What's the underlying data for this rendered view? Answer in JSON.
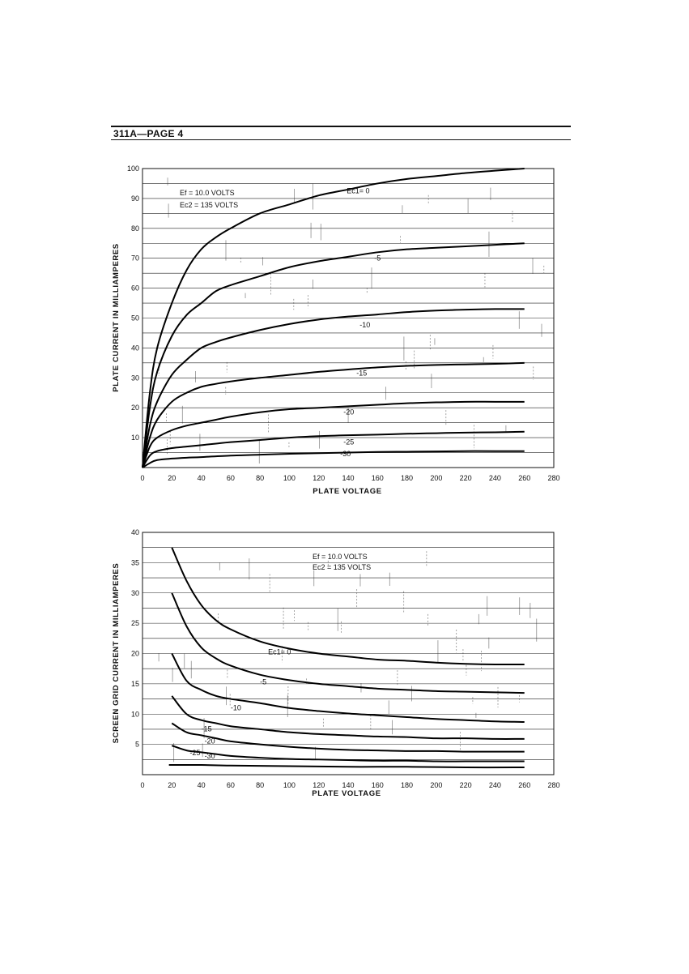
{
  "page": {
    "heading": "311A—PAGE 4"
  },
  "chart_data": [
    {
      "type": "line",
      "title": "",
      "xlabel": "PLATE VOLTAGE",
      "ylabel": "PLATE CURRENT IN MILLIAMPERES",
      "xlim": [
        0,
        280
      ],
      "ylim": [
        0,
        100
      ],
      "x_ticks": [
        "0",
        "20",
        "40",
        "60",
        "80",
        "100",
        "120",
        "140",
        "160",
        "180",
        "200",
        "220",
        "240",
        "260",
        "280"
      ],
      "y_ticks": [
        "10",
        "20",
        "30",
        "40",
        "50",
        "60",
        "70",
        "80",
        "90",
        "100"
      ],
      "conditions": [
        "Ef = 10.0 VOLTS",
        "Ec2 = 135 VOLTS"
      ],
      "series": [
        {
          "name": "Ec1 = 0",
          "label": "Ec1= 0",
          "x": [
            0,
            5,
            10,
            20,
            30,
            40,
            50,
            60,
            80,
            100,
            120,
            140,
            160,
            180,
            200,
            220,
            240,
            260
          ],
          "y": [
            0,
            25,
            40,
            55,
            66,
            73,
            77,
            80,
            85,
            88,
            91,
            93,
            95,
            96.5,
            97.5,
            98.5,
            99.3,
            100
          ]
        },
        {
          "name": "Ec1 = -5",
          "label": "-5",
          "x": [
            0,
            5,
            10,
            20,
            30,
            40,
            50,
            60,
            80,
            100,
            120,
            140,
            160,
            180,
            200,
            220,
            240,
            260
          ],
          "y": [
            0,
            20,
            32,
            44,
            51,
            55,
            59,
            61,
            64,
            67,
            69,
            70.5,
            72,
            73,
            73.5,
            74,
            74.5,
            75
          ]
        },
        {
          "name": "Ec1 = -10",
          "label": "-10",
          "x": [
            0,
            5,
            10,
            20,
            30,
            40,
            50,
            60,
            80,
            100,
            120,
            140,
            160,
            180,
            200,
            220,
            240,
            260
          ],
          "y": [
            0,
            14,
            22,
            31,
            36,
            40,
            42,
            43.5,
            46,
            48,
            49.5,
            50.5,
            51.2,
            52,
            52.5,
            52.8,
            53,
            53
          ]
        },
        {
          "name": "Ec1 = -15",
          "label": "-15",
          "x": [
            0,
            5,
            10,
            20,
            30,
            40,
            50,
            60,
            80,
            100,
            120,
            140,
            160,
            180,
            200,
            220,
            240,
            260
          ],
          "y": [
            0,
            10,
            16,
            22,
            25,
            27,
            28,
            28.8,
            30,
            31,
            32,
            32.8,
            33.5,
            34,
            34.3,
            34.5,
            34.7,
            35
          ]
        },
        {
          "name": "Ec1 = -20",
          "label": "-20",
          "x": [
            0,
            5,
            10,
            20,
            30,
            40,
            50,
            60,
            80,
            100,
            120,
            140,
            160,
            180,
            200,
            220,
            240,
            260
          ],
          "y": [
            0,
            7,
            10,
            12.5,
            14,
            15,
            16,
            17,
            18.5,
            19.5,
            20,
            20.5,
            21,
            21.5,
            21.8,
            22,
            22,
            22
          ]
        },
        {
          "name": "Ec1 = -25",
          "label": "-25",
          "x": [
            0,
            5,
            10,
            20,
            30,
            40,
            50,
            60,
            80,
            100,
            120,
            140,
            160,
            180,
            200,
            220,
            240,
            260
          ],
          "y": [
            0,
            4,
            5.5,
            6.5,
            7,
            7.5,
            8,
            8.5,
            9.2,
            10,
            10.5,
            10.8,
            11,
            11.3,
            11.5,
            11.7,
            11.8,
            12
          ]
        },
        {
          "name": "Ec1 = -30",
          "label": "-30",
          "x": [
            0,
            5,
            10,
            20,
            30,
            40,
            60,
            80,
            100,
            120,
            140,
            160,
            180,
            200,
            220,
            240,
            260
          ],
          "y": [
            0,
            1.5,
            2.5,
            3,
            3.3,
            3.5,
            4,
            4.3,
            4.6,
            4.8,
            5,
            5.2,
            5.3,
            5.4,
            5.5,
            5.5,
            5.5
          ]
        }
      ]
    },
    {
      "type": "line",
      "title": "",
      "xlabel": "PLATE VOLTAGE",
      "ylabel": "SCREEN GRID CURRENT IN MILLIAMPERES",
      "xlim": [
        0,
        280
      ],
      "ylim": [
        0,
        40
      ],
      "x_ticks": [
        "0",
        "20",
        "40",
        "60",
        "80",
        "100",
        "120",
        "140",
        "160",
        "180",
        "200",
        "220",
        "240",
        "260",
        "280"
      ],
      "y_ticks": [
        "5",
        "10",
        "15",
        "20",
        "25",
        "30",
        "35",
        "40"
      ],
      "conditions": [
        "Ef = 10.0 VOLTS",
        "Ec2 = 135 VOLTS"
      ],
      "series": [
        {
          "name": "Ec1 = 0",
          "label": "Ec1= 0",
          "x": [
            20,
            30,
            40,
            50,
            60,
            80,
            100,
            120,
            140,
            160,
            180,
            200,
            220,
            240,
            260
          ],
          "y": [
            37.5,
            32,
            28,
            25.5,
            24,
            22,
            20.8,
            20,
            19.5,
            19,
            18.8,
            18.5,
            18.3,
            18.2,
            18.2
          ]
        },
        {
          "name": "Ec1 = -5",
          "label": "-5",
          "x": [
            20,
            30,
            40,
            50,
            60,
            80,
            100,
            120,
            140,
            160,
            180,
            200,
            220,
            240,
            260
          ],
          "y": [
            30,
            24.5,
            21,
            19.2,
            18,
            16.5,
            15.6,
            15,
            14.6,
            14.2,
            14,
            13.8,
            13.7,
            13.6,
            13.5
          ]
        },
        {
          "name": "Ec1 = -10",
          "label": "-10",
          "x": [
            20,
            30,
            40,
            50,
            60,
            80,
            100,
            120,
            140,
            160,
            180,
            200,
            220,
            240,
            260
          ],
          "y": [
            20,
            15.5,
            14,
            13,
            12.5,
            11.8,
            11,
            10.5,
            10.1,
            9.8,
            9.5,
            9.2,
            9,
            8.8,
            8.7
          ]
        },
        {
          "name": "Ec1 = -15",
          "label": "-15",
          "x": [
            20,
            30,
            40,
            50,
            60,
            80,
            100,
            120,
            140,
            160,
            180,
            200,
            220,
            240,
            260
          ],
          "y": [
            13,
            10,
            9,
            8.5,
            8,
            7.5,
            7,
            6.7,
            6.5,
            6.3,
            6.2,
            6,
            6,
            5.9,
            5.9
          ]
        },
        {
          "name": "Ec1 = -20",
          "label": "-20",
          "x": [
            20,
            30,
            40,
            50,
            60,
            80,
            100,
            120,
            140,
            160,
            180,
            200,
            220,
            240,
            260
          ],
          "y": [
            8.5,
            7,
            6.5,
            6,
            5.5,
            5,
            4.6,
            4.3,
            4.1,
            4,
            3.9,
            3.9,
            3.8,
            3.8,
            3.8
          ]
        },
        {
          "name": "Ec1 = -25",
          "label": "-25",
          "x": [
            20,
            30,
            40,
            50,
            60,
            80,
            100,
            120,
            140,
            160,
            180,
            200,
            220,
            240,
            260
          ],
          "y": [
            4.8,
            4,
            3.7,
            3.4,
            3.1,
            2.8,
            2.6,
            2.5,
            2.4,
            2.3,
            2.3,
            2.2,
            2.2,
            2.2,
            2.2
          ]
        },
        {
          "name": "Ec1 = -30",
          "label": "-30",
          "x": [
            18,
            40,
            60,
            100,
            140,
            180,
            220,
            260
          ],
          "y": [
            1.6,
            1.6,
            1.5,
            1.4,
            1.3,
            1.3,
            1.2,
            1.2
          ]
        }
      ]
    }
  ],
  "icons": {
    "scan_noise": "scan-noise-icon"
  }
}
